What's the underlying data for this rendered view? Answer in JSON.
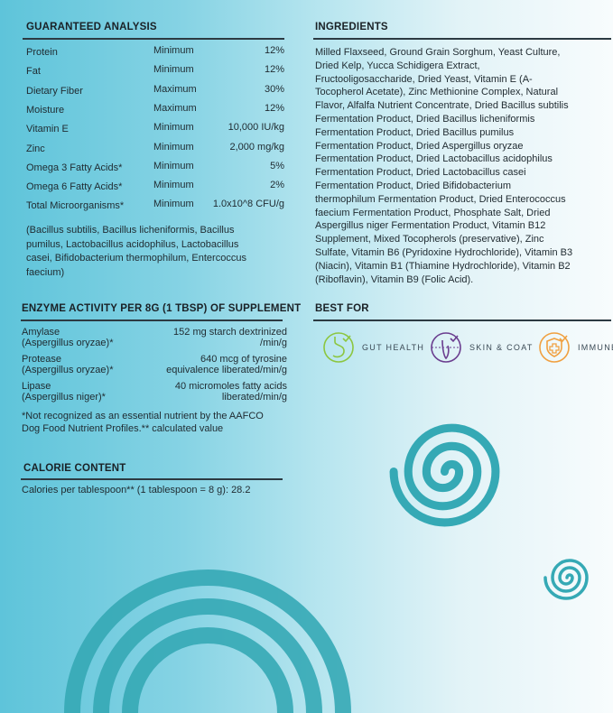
{
  "guaranteed": {
    "title": "GUARANTEED ANALYSIS",
    "rows": [
      {
        "name": "Protein",
        "type": "Minimum",
        "value": "12%"
      },
      {
        "name": "Fat",
        "type": "Minimum",
        "value": "12%"
      },
      {
        "name": "Dietary Fiber",
        "type": "Maximum",
        "value": "30%"
      },
      {
        "name": "Moisture",
        "type": "Maximum",
        "value": "12%"
      },
      {
        "name": "Vitamin E",
        "type": "Minimum",
        "value": "10,000 IU/kg"
      },
      {
        "name": "Zinc",
        "type": "Minimum",
        "value": "2,000 mg/kg"
      },
      {
        "name": "Omega 3 Fatty Acids*",
        "type": "Minimum",
        "value": "5%"
      },
      {
        "name": "Omega 6 Fatty Acids*",
        "type": "Minimum",
        "value": "2%"
      },
      {
        "name": "Total Microorganisms*",
        "type": "Minimum",
        "value": "1.0x10^8 CFU/g"
      }
    ],
    "note_lines": [
      "(Bacillus subtilis, Bacillus licheniformis, Bacillus",
      "pumilus, Lactobacillus acidophilus, Lactobacillus",
      "casei, Bifidobacterium thermophilum, Entercoccus",
      "faecium)"
    ]
  },
  "enzyme": {
    "title": "ENZYME ACTIVITY PER 8G (1 TBSP) OF SUPPLEMENT",
    "rows": [
      {
        "name": "Amylase",
        "source": "(Aspergillus oryzae)*",
        "value1": "152 mg starch dextrinized",
        "value2": "/min/g"
      },
      {
        "name": "Protease",
        "source": "(Aspergillus oryzae)*",
        "value1": "640 mcg of tyrosine",
        "value2": "equivalence liberated/min/g"
      },
      {
        "name": "Lipase",
        "source": "(Aspergillus niger)*",
        "value1": "40 micromoles fatty acids",
        "value2": "liberated/min/g"
      }
    ],
    "footnote_lines": [
      "*Not recognized as an essential nutrient by the AAFCO",
      "Dog Food Nutrient Profiles.** calculated value"
    ]
  },
  "calorie": {
    "title": "CALORIE CONTENT",
    "text": "Calories per tablespoon** (1 tablespoon = 8 g): 28.2"
  },
  "ingredients": {
    "title": "INGREDIENTS",
    "lines": [
      "Milled Flaxseed, Ground Grain Sorghum, Yeast Culture,",
      "Dried Kelp, Yucca Schidigera Extract,",
      "Fructooligosaccharide, Dried Yeast, Vitamin E (A-",
      "Tocopherol Acetate), Zinc Methionine Complex, Natural",
      "Flavor, Alfalfa Nutrient Concentrate, Dried Bacillus subtilis",
      "Fermentation Product, Dried Bacillus licheniformis",
      "Fermentation Product, Dried Bacillus pumilus",
      "Fermentation Product, Dried Aspergillus oryzae",
      "Fermentation Product, Dried Lactobacillus acidophilus",
      "Fermentation Product, Dried Lactobacillus casei",
      "Fermentation Product, Dried Bifidobacterium",
      "thermophilum Fermentation Product, Dried Enterococcus",
      "faecium Fermentation Product, Phosphate Salt, Dried",
      "Aspergillus niger Fermentation Product, Vitamin B12",
      "Supplement, Mixed Tocopherols (preservative), Zinc",
      "Sulfate, Vitamin B6 (Pyridoxine Hydrochloride), Vitamin B3",
      "(Niacin), Vitamin B1 (Thiamine Hydrochloride), Vitamin B2",
      "(Riboflavin), Vitamin B9 (Folic Acid)."
    ]
  },
  "best_for": {
    "title": "BEST FOR",
    "items": [
      {
        "label": "GUT HEALTH",
        "icon": "stomach-icon",
        "color": "#8cc63f"
      },
      {
        "label": "SKIN & COAT",
        "icon": "hair-follicle-icon",
        "color": "#6a3d8f"
      },
      {
        "label": "IMMUNE",
        "icon": "shield-cross-icon",
        "color": "#f0a040"
      }
    ]
  },
  "colors": {
    "swirl": "#35a9b5"
  }
}
